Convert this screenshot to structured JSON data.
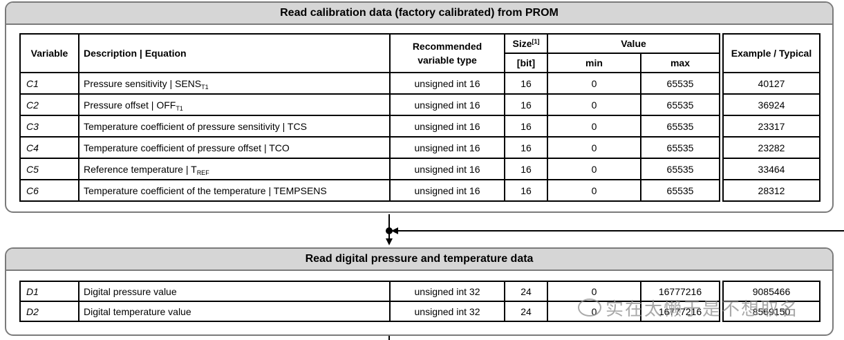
{
  "panel1": {
    "title": "Read calibration data (factory calibrated) from PROM",
    "headers": {
      "variable": "Variable",
      "description": "Description | Equation",
      "recommended": "Recommended variable type",
      "size": "Size",
      "size_note": "[1]",
      "size_unit": "[bit]",
      "value": "Value",
      "min": "min",
      "max": "max",
      "example": "Example / Typical"
    },
    "rows": [
      {
        "var": "C1",
        "desc": "Pressure sensitivity | SENS",
        "sub": "T1",
        "type": "unsigned int 16",
        "size": "16",
        "min": "0",
        "max": "65535",
        "example": "40127"
      },
      {
        "var": "C2",
        "desc": "Pressure offset | OFF",
        "sub": "T1",
        "type": "unsigned int 16",
        "size": "16",
        "min": "0",
        "max": "65535",
        "example": "36924"
      },
      {
        "var": "C3",
        "desc": "Temperature coefficient of pressure sensitivity | TCS",
        "sub": "",
        "type": "unsigned int 16",
        "size": "16",
        "min": "0",
        "max": "65535",
        "example": "23317"
      },
      {
        "var": "C4",
        "desc": "Temperature coefficient of pressure offset | TCO",
        "sub": "",
        "type": "unsigned int 16",
        "size": "16",
        "min": "0",
        "max": "65535",
        "example": "23282"
      },
      {
        "var": "C5",
        "desc": "Reference temperature | T",
        "sub": "REF",
        "type": "unsigned int 16",
        "size": "16",
        "min": "0",
        "max": "65535",
        "example": "33464"
      },
      {
        "var": "C6",
        "desc": "Temperature coefficient of the temperature | TEMPSENS",
        "sub": "",
        "type": "unsigned int 16",
        "size": "16",
        "min": "0",
        "max": "65535",
        "example": "28312"
      }
    ]
  },
  "panel2": {
    "title": "Read digital pressure and temperature data",
    "rows": [
      {
        "var": "D1",
        "desc": "Digital pressure value",
        "type": "unsigned int 32",
        "size": "24",
        "min": "0",
        "max": "16777216",
        "example": "9085466"
      },
      {
        "var": "D2",
        "desc": "Digital temperature value",
        "type": "unsigned int 32",
        "size": "24",
        "min": "0",
        "max": "16777216",
        "example": "8569150"
      }
    ]
  },
  "watermark": "实在太懒于是不想取名"
}
